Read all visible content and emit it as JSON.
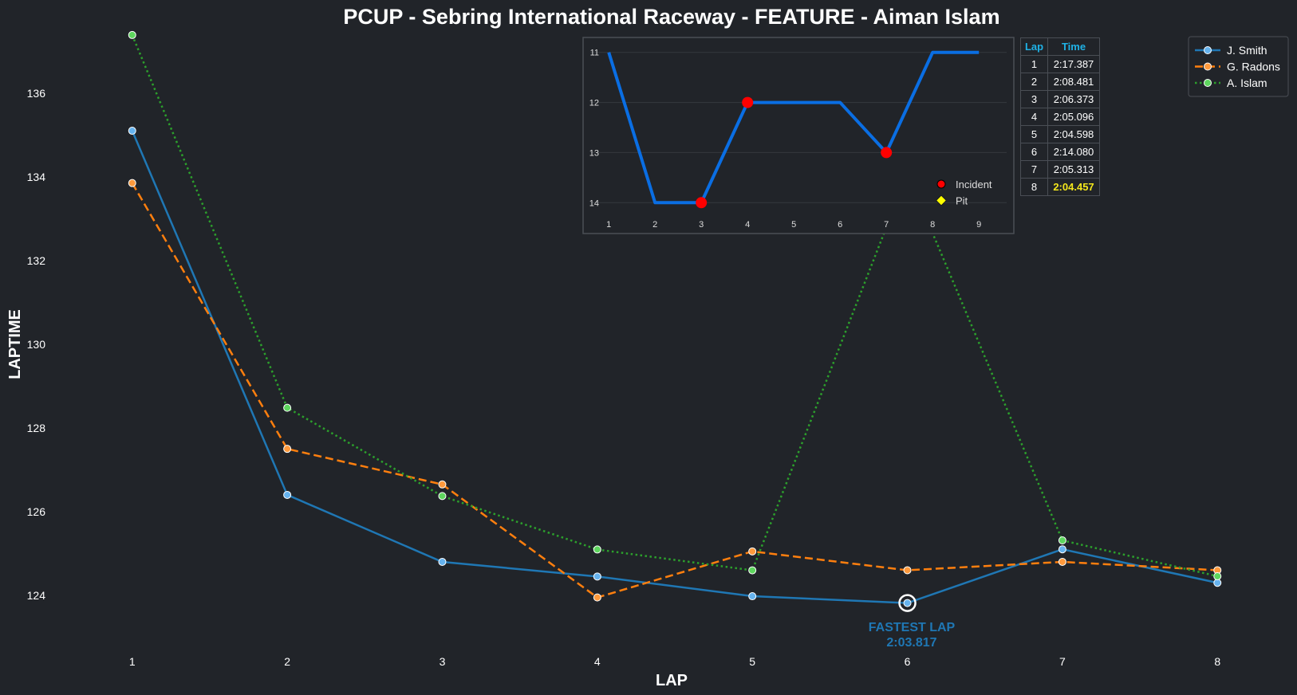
{
  "chart_data": [
    {
      "type": "line",
      "title": "PCUP - Sebring International Raceway - FEATURE - Aiman Islam",
      "xlabel": "LAP",
      "ylabel": "LAPTIME",
      "x": [
        1,
        2,
        3,
        4,
        5,
        6,
        7,
        8
      ],
      "xlim": [
        0.6,
        8.4
      ],
      "ylim": [
        122.8,
        137.5
      ],
      "yticks": [
        124,
        126,
        128,
        130,
        132,
        134,
        136
      ],
      "grid": false,
      "legend": "top-right",
      "series": [
        {
          "name": "J. Smith",
          "color": "#1f77b4",
          "line_style": "solid",
          "values": [
            135.1,
            126.4,
            124.8,
            124.45,
            123.98,
            123.817,
            125.1,
            124.3
          ]
        },
        {
          "name": "G. Radons",
          "color": "#ff7f0e",
          "line_style": "dashed",
          "values": [
            133.85,
            127.5,
            126.65,
            123.95,
            125.05,
            124.6,
            124.8,
            124.6
          ]
        },
        {
          "name": "A. Islam",
          "color": "#2ca02c",
          "line_style": "dotted",
          "values": [
            137.387,
            128.481,
            126.373,
            125.096,
            124.598,
            134.08,
            125.313,
            124.457
          ]
        }
      ],
      "annotation": {
        "x": 6,
        "y": 123.817,
        "label": "FASTEST LAP",
        "value": "2:03.817",
        "color": "#1f77b4"
      }
    },
    {
      "type": "line",
      "series_color": "#0a6ee3",
      "x": [
        1,
        2,
        3,
        4,
        5,
        6,
        7,
        8,
        9
      ],
      "values": [
        11,
        14,
        14,
        12,
        12,
        12,
        13,
        11,
        11
      ],
      "xlim": [
        0.6,
        9.6
      ],
      "ylim": [
        14.25,
        10.75
      ],
      "yticks": [
        11,
        12,
        13,
        14
      ],
      "inverted_y": true,
      "grid": true,
      "legend": "bottom-right",
      "incidents": [
        {
          "x": 3,
          "y": 14
        },
        {
          "x": 4,
          "y": 12
        },
        {
          "x": 7,
          "y": 13
        }
      ],
      "pits": [],
      "legend_items": [
        {
          "label": "Incident",
          "marker": "circle",
          "color": "#ff0000"
        },
        {
          "label": "Pit",
          "marker": "diamond",
          "color": "#ffff00"
        }
      ]
    }
  ],
  "lap_table": {
    "headers": [
      "Lap",
      "Time"
    ],
    "rows": [
      {
        "lap": "1",
        "time": "2:17.387"
      },
      {
        "lap": "2",
        "time": "2:08.481"
      },
      {
        "lap": "3",
        "time": "2:06.373"
      },
      {
        "lap": "4",
        "time": "2:05.096"
      },
      {
        "lap": "5",
        "time": "2:04.598"
      },
      {
        "lap": "6",
        "time": "2:14.080"
      },
      {
        "lap": "7",
        "time": "2:05.313"
      },
      {
        "lap": "8",
        "time": "2:04.457",
        "best": true
      }
    ]
  }
}
